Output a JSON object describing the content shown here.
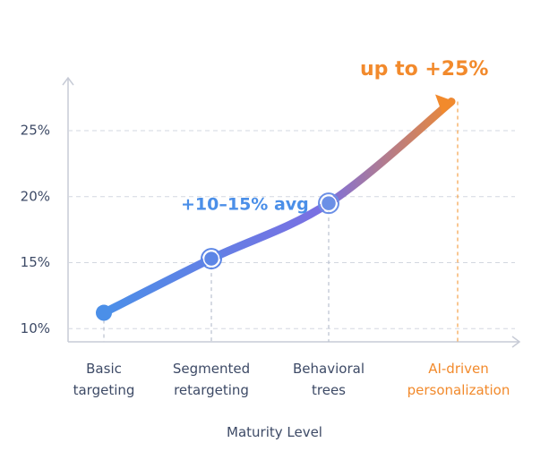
{
  "chart_data": {
    "type": "line",
    "x_label": "Maturity Level",
    "categories": [
      "Basic targeting",
      "Segmented retargeting",
      "Behavioral trees",
      "AI-driven personalization"
    ],
    "values": [
      11.2,
      15.3,
      19.5,
      27.2
    ],
    "colors": [
      "#4b8fe8",
      "#7b6fe2",
      "#f28a2c"
    ],
    "annotations": [
      "+10–15% avg",
      "up to +25%"
    ],
    "ylim": [
      9,
      29
    ],
    "yticks": [
      {
        "value": 10,
        "label": "10%"
      },
      {
        "value": 15,
        "label": "15%"
      },
      {
        "value": 20,
        "label": "20%"
      },
      {
        "value": 25,
        "label": "25%"
      }
    ],
    "grid": true
  }
}
